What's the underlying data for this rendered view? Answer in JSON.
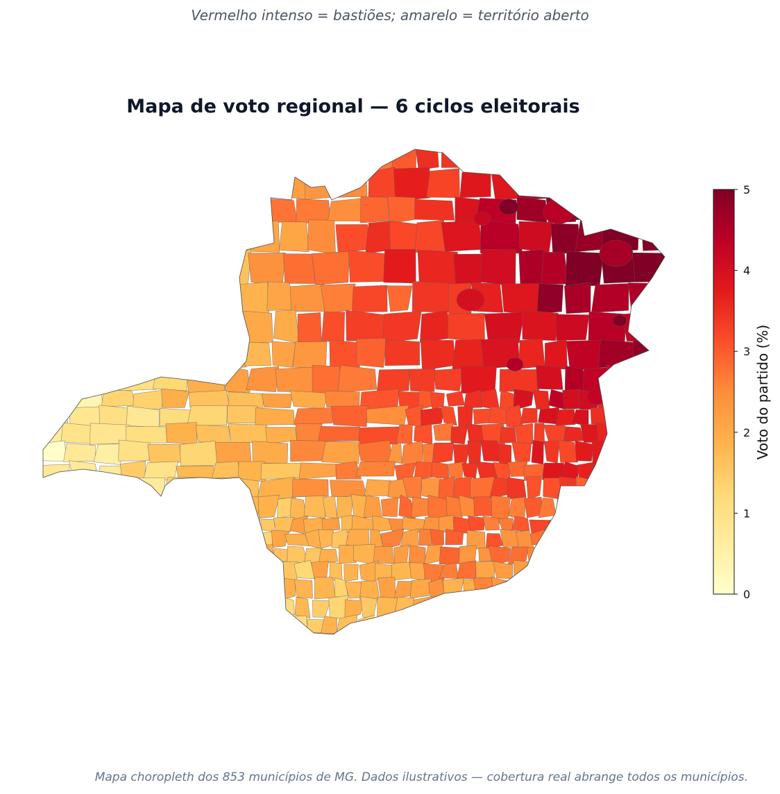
{
  "subtitle": "Vermelho intenso = bastiões; amarelo = território aberto",
  "title": "Mapa de voto regional — 6 ciclos eleitorais",
  "footnote": "Mapa choropleth dos 853 municípios de MG. Dados ilustrativos — cobertura real abrange todos os municípios.",
  "colorbar": {
    "label": "Voto do partido (%)",
    "min": 0,
    "max": 5,
    "ticks": [
      "0",
      "1",
      "2",
      "3",
      "4",
      "5"
    ],
    "colormap": [
      "#ffffcc",
      "#ffeda0",
      "#fed976",
      "#feb24c",
      "#fd8d3c",
      "#fc4e2a",
      "#e31a1c",
      "#bd0026",
      "#800026"
    ]
  },
  "map": {
    "region": "MG",
    "municipality_count": 853
  }
}
